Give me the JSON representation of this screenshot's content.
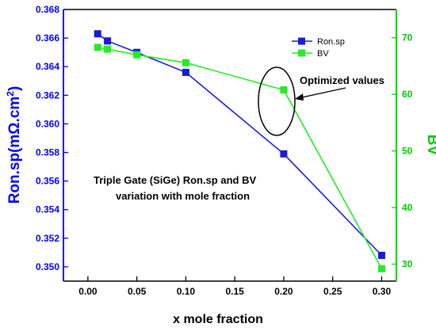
{
  "chart_data": {
    "type": "line",
    "xlabel": "x mole fraction",
    "ylabel_left_base": "Ron.sp(mΩ.cm",
    "ylabel_left_sup": "2",
    "ylabel_left_close": ")",
    "ylabel_right": "BV",
    "xlim": [
      -0.025,
      0.315
    ],
    "ylim_left": [
      0.349,
      0.368
    ],
    "ylim_right": [
      27,
      75
    ],
    "x_ticks": [
      0.0,
      0.05,
      0.1,
      0.15,
      0.2,
      0.25,
      0.3
    ],
    "x_tick_labels": [
      "0.00",
      "0.05",
      "0.10",
      "0.15",
      "0.20",
      "0.25",
      "0.30"
    ],
    "y_left_ticks": [
      0.35,
      0.352,
      0.354,
      0.356,
      0.358,
      0.36,
      0.362,
      0.364,
      0.366,
      0.368
    ],
    "y_left_tick_labels": [
      "0.350",
      "0.352",
      "0.354",
      "0.356",
      "0.358",
      "0.360",
      "0.362",
      "0.364",
      "0.366",
      "0.368"
    ],
    "y_right_ticks": [
      30,
      40,
      50,
      60,
      70
    ],
    "y_right_tick_labels": [
      "30",
      "40",
      "50",
      "60",
      "70"
    ],
    "grid": false,
    "legend_position": "top-right",
    "series": [
      {
        "name": "Ron.sp",
        "axis": "left",
        "color": "#1a1adb",
        "x": [
          0.01,
          0.02,
          0.05,
          0.1,
          0.2,
          0.3
        ],
        "values": [
          0.3663,
          0.3658,
          0.365,
          0.3636,
          0.3579,
          0.3508
        ]
      },
      {
        "name": "BV",
        "axis": "right",
        "color": "#22ee22",
        "x": [
          0.01,
          0.02,
          0.05,
          0.1,
          0.2,
          0.3
        ],
        "values": [
          68.3,
          68.0,
          67.0,
          65.6,
          60.8,
          29.2
        ]
      }
    ],
    "annotations": {
      "title_line1": "Triple Gate (SiGe) Ron.sp and BV",
      "title_line2": "variation with mole fraction",
      "optimized_label": "Optimized values"
    }
  }
}
